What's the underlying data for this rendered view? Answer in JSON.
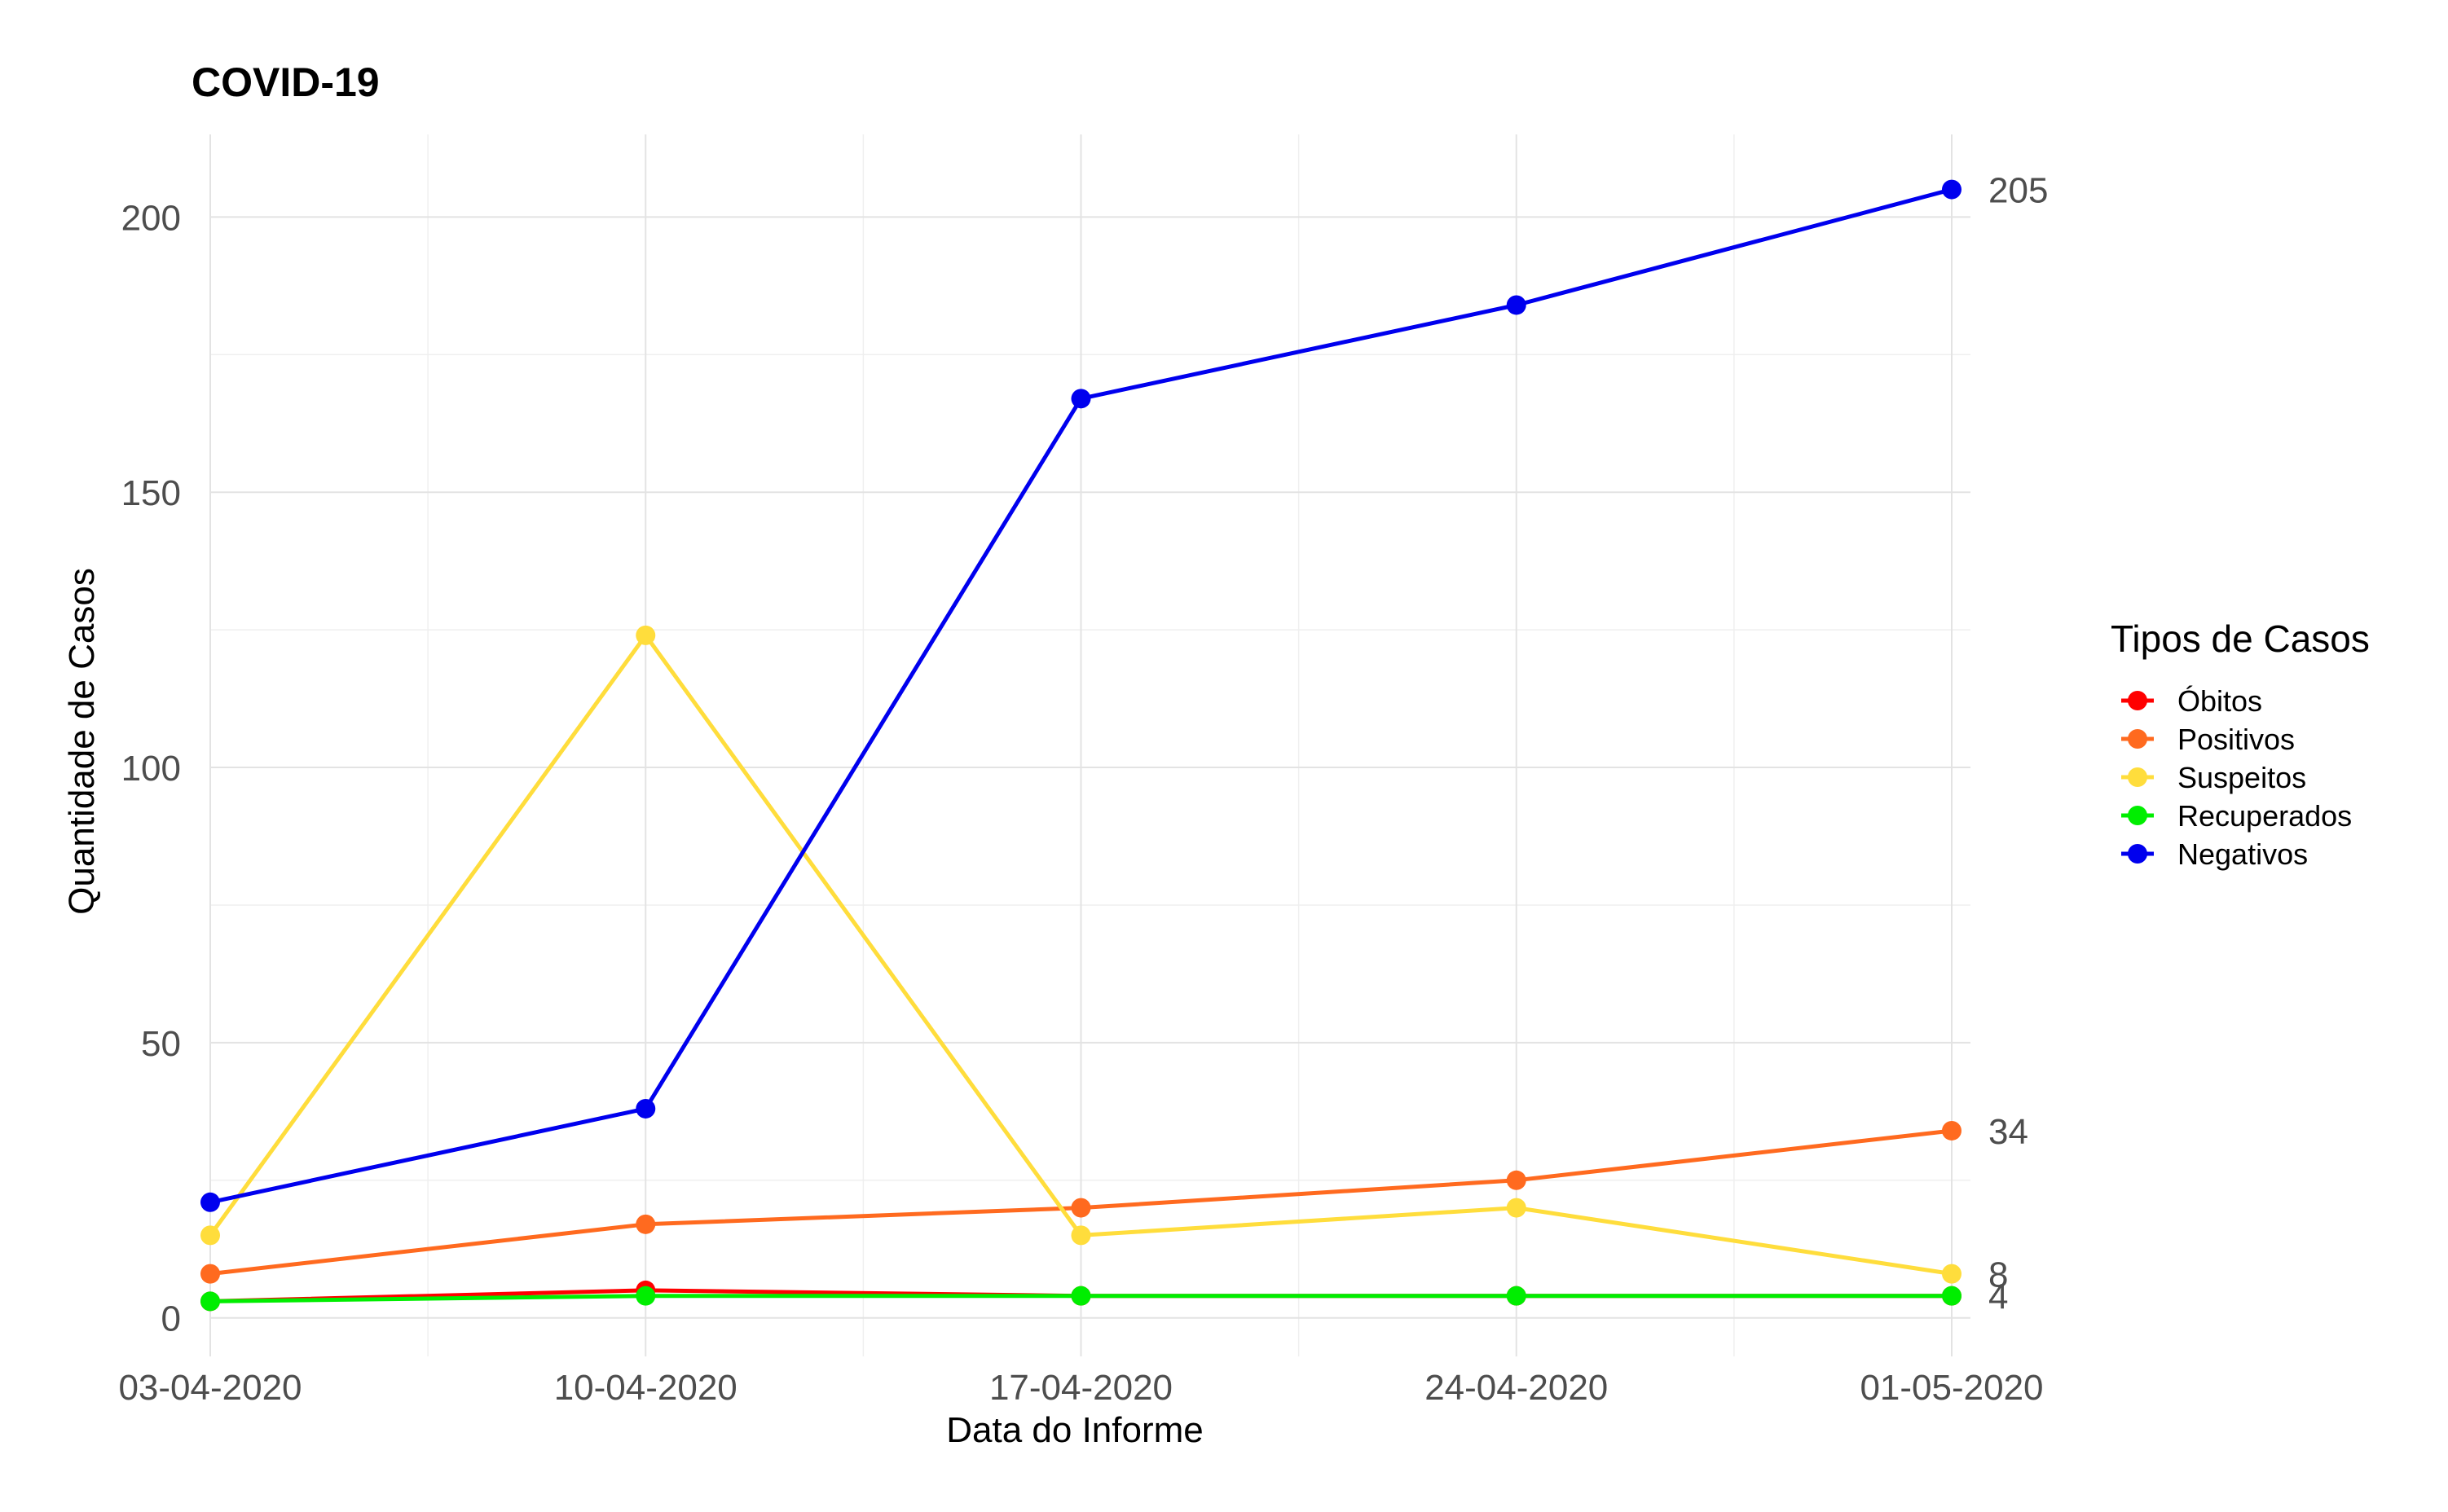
{
  "chart_data": {
    "type": "line",
    "title": "COVID-19",
    "xlabel": "Data do Informe",
    "ylabel": "Quantidade de Casos",
    "categories": [
      "03-04-2020",
      "10-04-2020",
      "17-04-2020",
      "24-04-2020",
      "01-05-2020"
    ],
    "ylim": [
      -7,
      215
    ],
    "yticks": [
      0,
      50,
      100,
      150,
      200
    ],
    "grid": true,
    "legend": {
      "title": "Tipos de Casos",
      "placement": "right"
    },
    "series": [
      {
        "name": "Óbitos",
        "color": "#ff0000",
        "values": [
          3,
          5,
          4,
          4,
          4
        ]
      },
      {
        "name": "Positivos",
        "color": "#ff6a1f",
        "values": [
          8,
          17,
          20,
          25,
          34
        ]
      },
      {
        "name": "Suspeitos",
        "color": "#ffdd3c",
        "values": [
          15,
          124,
          15,
          20,
          8
        ]
      },
      {
        "name": "Recuperados",
        "color": "#00ee00",
        "values": [
          3,
          4,
          4,
          4,
          4
        ]
      },
      {
        "name": "Negativos",
        "color": "#0000ee",
        "values": [
          21,
          38,
          167,
          184,
          205
        ]
      }
    ],
    "end_labels": [
      {
        "series": "Negativos",
        "text": "205"
      },
      {
        "series": "Positivos",
        "text": "34"
      },
      {
        "series": "Suspeitos",
        "text": "8"
      },
      {
        "series": "Recuperados",
        "text": "4"
      }
    ]
  }
}
